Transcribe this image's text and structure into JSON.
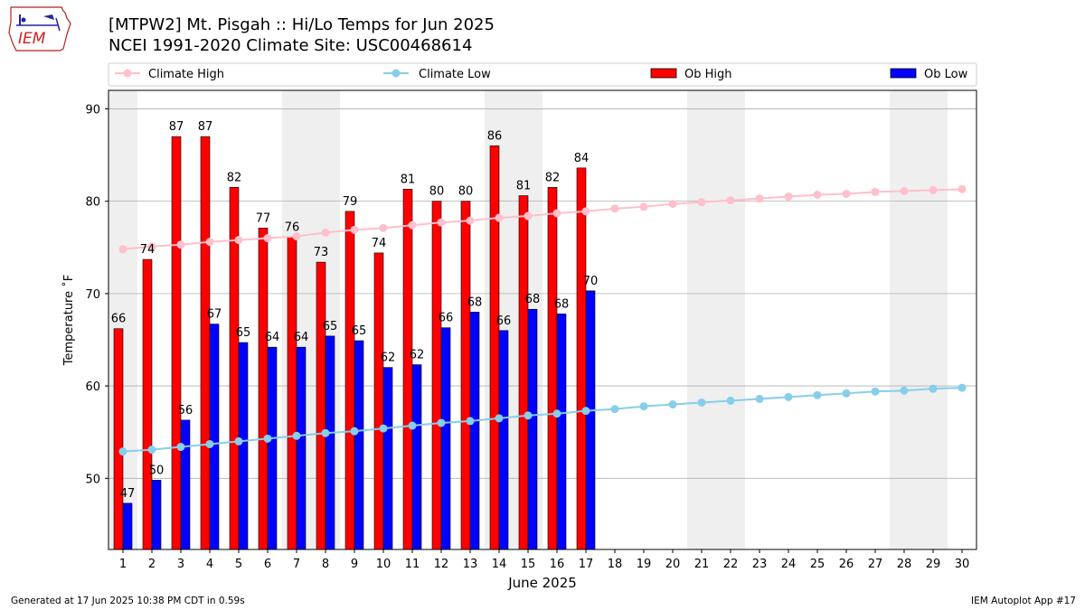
{
  "header": {
    "title_line1": "[MTPW2] Mt. Pisgah :: Hi/Lo Temps for Jun 2025",
    "title_line2": "NCEI 1991-2020 Climate Site: USC00468614"
  },
  "logo": {
    "text": "IEM",
    "icon": "iem-iowa-logo-icon"
  },
  "footer": {
    "left": "Generated at 17 Jun 2025 10:38 PM CDT in 0.59s",
    "right": "IEM Autoplot App #17"
  },
  "colors": {
    "ob_high": "#ff0000",
    "ob_low": "#0000ff",
    "climate_high": "#ffc0cb",
    "climate_low": "#87ceeb",
    "weekend_shade": "#efefef",
    "grid": "#b0b0b0"
  },
  "chart_data": {
    "type": "bar",
    "xlabel": "June 2025",
    "ylabel": "Temperature ˚F",
    "ylim": [
      42.3,
      92
    ],
    "yticks": [
      50,
      60,
      70,
      80,
      90
    ],
    "grid": "horizontal",
    "legend_position": "top",
    "days": [
      1,
      2,
      3,
      4,
      5,
      6,
      7,
      8,
      9,
      10,
      11,
      12,
      13,
      14,
      15,
      16,
      17,
      18,
      19,
      20,
      21,
      22,
      23,
      24,
      25,
      26,
      27,
      28,
      29,
      30
    ],
    "weekend_days": [
      1,
      7,
      8,
      14,
      15,
      21,
      22,
      28,
      29
    ],
    "legend": [
      "Climate High",
      "Climate Low",
      "Ob High",
      "Ob Low"
    ],
    "series": [
      {
        "name": "Ob High",
        "kind": "bar",
        "values": [
          66.2,
          73.7,
          87,
          87,
          81.5,
          77.1,
          76.1,
          73.4,
          78.9,
          74.4,
          81.3,
          80,
          80,
          86,
          80.6,
          81.5,
          83.6
        ],
        "labels": [
          "66",
          "74",
          "87",
          "87",
          "82",
          "77",
          "76",
          "73",
          "79",
          "74",
          "81",
          "80",
          "80",
          "86",
          "81",
          "82",
          "84"
        ]
      },
      {
        "name": "Ob Low",
        "kind": "bar",
        "values": [
          47.3,
          49.8,
          56.3,
          66.7,
          64.7,
          64.2,
          64.2,
          65.4,
          64.9,
          62,
          62.3,
          66.3,
          68,
          66,
          68.3,
          67.8,
          70.3
        ],
        "labels": [
          "47",
          "50",
          "56",
          "67",
          "65",
          "64",
          "64",
          "65",
          "65",
          "62",
          "62",
          "66",
          "68",
          "66",
          "68",
          "68",
          "70"
        ]
      },
      {
        "name": "Climate High",
        "kind": "line",
        "values": [
          74.8,
          75.1,
          75.3,
          75.6,
          75.8,
          76.0,
          76.2,
          76.6,
          76.9,
          77.1,
          77.4,
          77.7,
          77.9,
          78.2,
          78.4,
          78.7,
          78.9,
          79.2,
          79.4,
          79.7,
          79.9,
          80.1,
          80.3,
          80.5,
          80.7,
          80.8,
          81.0,
          81.1,
          81.2,
          81.3
        ]
      },
      {
        "name": "Climate Low",
        "kind": "line",
        "values": [
          52.9,
          53.1,
          53.4,
          53.7,
          54.0,
          54.3,
          54.6,
          54.9,
          55.1,
          55.4,
          55.7,
          56.0,
          56.2,
          56.5,
          56.8,
          57.0,
          57.3,
          57.5,
          57.8,
          58.0,
          58.2,
          58.4,
          58.6,
          58.8,
          59.0,
          59.2,
          59.4,
          59.5,
          59.7,
          59.8
        ]
      }
    ]
  }
}
